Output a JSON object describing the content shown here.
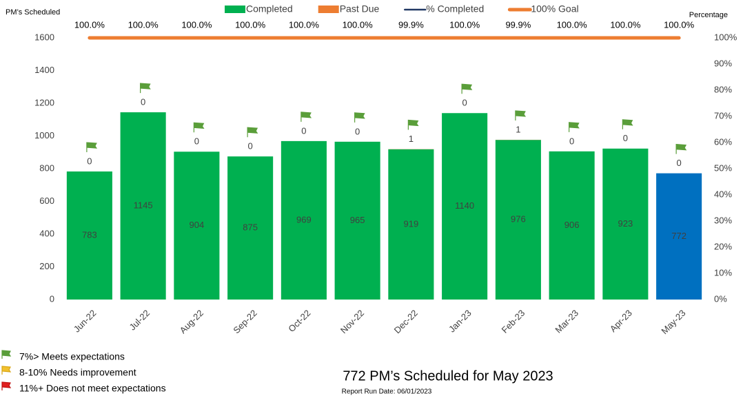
{
  "chart_data": {
    "type": "bar",
    "y_label": "PM’s Scheduled",
    "y2_label": "Percentage",
    "categories": [
      "Jun-22",
      "Jul-22",
      "Aug-22",
      "Sep-22",
      "Oct-22",
      "Nov-22",
      "Dec-22",
      "Jan-23",
      "Feb-23",
      "Mar-23",
      "Apr-23",
      "May-23"
    ],
    "series": [
      {
        "name": "Completed",
        "type": "bar",
        "color": "#00b050",
        "colors": [
          "#00b050",
          "#00b050",
          "#00b050",
          "#00b050",
          "#00b050",
          "#00b050",
          "#00b050",
          "#00b050",
          "#00b050",
          "#00b050",
          "#00b050",
          "#0070c0"
        ],
        "values": [
          783,
          1145,
          904,
          875,
          969,
          965,
          919,
          1140,
          976,
          906,
          923,
          772
        ]
      },
      {
        "name": "Past Due",
        "type": "bar",
        "color": "#ed7d31",
        "values": [
          0,
          0,
          0,
          0,
          0,
          0,
          1,
          0,
          1,
          0,
          0,
          0
        ]
      },
      {
        "name": "% Completed",
        "type": "line",
        "axis": "y2",
        "color": "#203864",
        "values": [
          100.0,
          100.0,
          100.0,
          100.0,
          100.0,
          100.0,
          99.9,
          100.0,
          99.9,
          100.0,
          100.0,
          100.0
        ],
        "value_labels": [
          "100.0%",
          "100.0%",
          "100.0%",
          "100.0%",
          "100.0%",
          "100.0%",
          "99.9%",
          "100.0%",
          "99.9%",
          "100.0%",
          "100.0%",
          "100.0%"
        ]
      },
      {
        "name": "100% Goal",
        "type": "line",
        "axis": "y2",
        "color": "#ed7d31",
        "values": [
          100,
          100,
          100,
          100,
          100,
          100,
          100,
          100,
          100,
          100,
          100,
          100
        ]
      }
    ],
    "ylim": [
      0,
      1600
    ],
    "yticks": [
      0,
      200,
      400,
      600,
      800,
      1000,
      1200,
      1400,
      1600
    ],
    "y2lim": [
      0,
      100
    ],
    "y2ticks": [
      {
        "value": 0,
        "label": "0%"
      },
      {
        "value": 10,
        "label": "10%"
      },
      {
        "value": 20,
        "label": "20%"
      },
      {
        "value": 30,
        "label": "30%"
      },
      {
        "value": 40,
        "label": "40%"
      },
      {
        "value": 50,
        "label": "50%"
      },
      {
        "value": 60,
        "label": "60%"
      },
      {
        "value": 70,
        "label": "70%"
      },
      {
        "value": 80,
        "label": "80%"
      },
      {
        "value": 90,
        "label": "90%"
      },
      {
        "value": 100,
        "label": "100%"
      }
    ],
    "grid": false,
    "legend": "top"
  },
  "footer": {
    "flag_legend": [
      "7%> Meets expectations",
      "8-10% Needs improvement",
      "11%+  Does not meet expectations"
    ],
    "summary": "772 PM’s Scheduled for May 2023",
    "run_date": "Report Run Date: 06/01/2023"
  }
}
